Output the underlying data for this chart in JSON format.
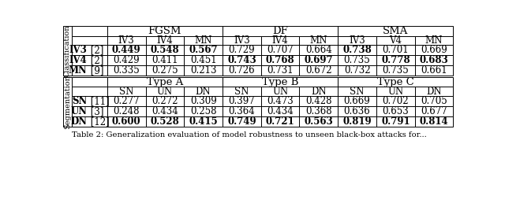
{
  "caption": "Table 2: Generalization evaluation of model robustness to unseen black-box attacks for...",
  "attack_groups_cls": [
    "FGSM",
    "DF",
    "SMA"
  ],
  "attack_groups_seg": [
    "Type A",
    "Type B",
    "Type C"
  ],
  "col_headers_cls": [
    "IV3",
    "IV4",
    "MN",
    "IV3",
    "IV4",
    "MN",
    "IV3",
    "V4",
    "MN"
  ],
  "col_headers_seg": [
    "SN",
    "UN",
    "DN",
    "SN",
    "UN",
    "DN",
    "SN",
    "UN",
    "DN"
  ],
  "row_labels_cls": [
    "IV3 [2]",
    "IV4 [2]",
    "MN [9]"
  ],
  "row_labels_seg": [
    "SN [11]",
    "UN [3]",
    "DN [12]"
  ],
  "row_labels_cls_bold_part": [
    "IV3",
    "IV4",
    "MN"
  ],
  "row_labels_seg_bold_part": [
    "SN",
    "UN",
    "DN"
  ],
  "data_cls": [
    [
      "0.449",
      "0.548",
      "0.567",
      "0.729",
      "0.707",
      "0.664",
      "0.738",
      "0.701",
      "0.669"
    ],
    [
      "0.429",
      "0.411",
      "0.451",
      "0.743",
      "0.768",
      "0.697",
      "0.735",
      "0.778",
      "0.683"
    ],
    [
      "0.335",
      "0.275",
      "0.213",
      "0.726",
      "0.731",
      "0.672",
      "0.732",
      "0.735",
      "0.661"
    ]
  ],
  "bold_cls": [
    [
      true,
      true,
      true,
      false,
      false,
      false,
      true,
      false,
      false
    ],
    [
      false,
      false,
      false,
      true,
      true,
      true,
      false,
      true,
      true
    ],
    [
      false,
      false,
      false,
      false,
      false,
      false,
      false,
      false,
      false
    ]
  ],
  "data_seg": [
    [
      "0.277",
      "0.272",
      "0.309",
      "0.397",
      "0.473",
      "0.428",
      "0.669",
      "0.702",
      "0.705"
    ],
    [
      "0.248",
      "0.434",
      "0.258",
      "0.364",
      "0.434",
      "0.368",
      "0.636",
      "0.653",
      "0.677"
    ],
    [
      "0.600",
      "0.528",
      "0.415",
      "0.749",
      "0.721",
      "0.563",
      "0.819",
      "0.791",
      "0.814"
    ]
  ],
  "bold_seg": [
    [
      false,
      false,
      false,
      false,
      false,
      false,
      false,
      false,
      false
    ],
    [
      false,
      false,
      false,
      false,
      false,
      false,
      false,
      false,
      false
    ],
    [
      true,
      true,
      true,
      true,
      true,
      true,
      true,
      true,
      true
    ]
  ]
}
